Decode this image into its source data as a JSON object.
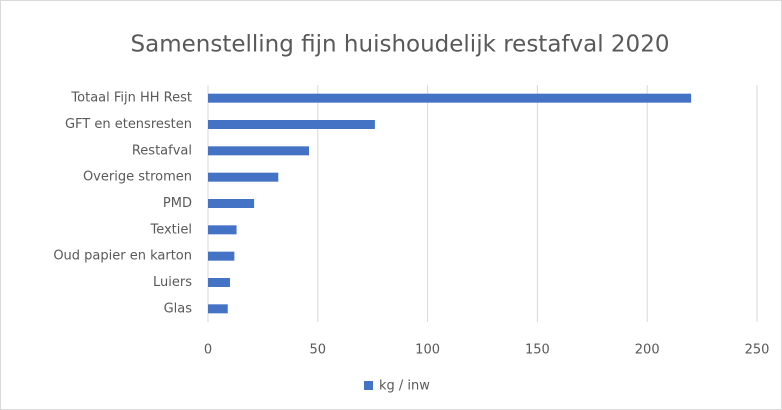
{
  "chart_data": {
    "type": "bar",
    "orientation": "horizontal",
    "title": "Samenstelling fijn huishoudelijk restafval 2020",
    "categories": [
      "Totaal Fijn HH Rest",
      "GFT en etensresten",
      "Restafval",
      "Overige stromen",
      "PMD",
      "Textiel",
      "Oud papier en karton",
      "Luiers",
      "Glas"
    ],
    "series": [
      {
        "name": "kg / inw",
        "color": "#4472c4",
        "values": [
          220,
          76,
          46,
          32,
          21,
          13,
          12,
          10,
          9
        ]
      }
    ],
    "xlim": [
      0,
      250
    ],
    "xticks": [
      0,
      50,
      100,
      150,
      200,
      250
    ],
    "grid": true,
    "legend": "bottom"
  }
}
